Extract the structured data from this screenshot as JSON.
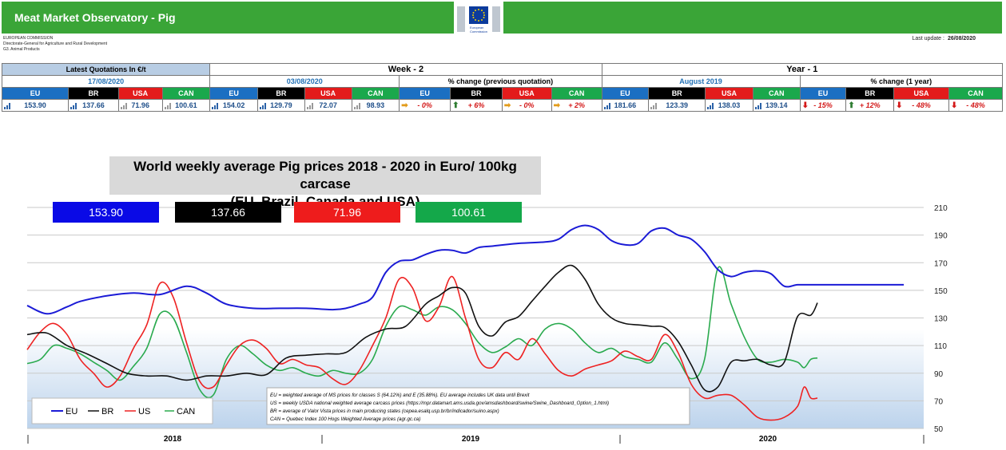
{
  "header": {
    "title": "Meat Market Observatory - Pig",
    "org_lines": [
      "EUROPEAN COMMISSION",
      "Directorate-General for Agriculture and Rural Development",
      "G3. Animal Products"
    ],
    "logo_text": [
      "European",
      "Commission"
    ],
    "last_update_label": "Last update :",
    "last_update_value": "26/08/2020"
  },
  "table": {
    "latest_label": "Latest Quotations In €/t",
    "week_label": "Week - 2",
    "year_label": "Year - 1",
    "latest_date": "17/08/2020",
    "week_date": "03/08/2020",
    "week_change_label": "% change (previous quotation)",
    "year_date": "August 2019",
    "year_change_label": "% change (1 year)",
    "countries": [
      "EU",
      "BR",
      "USA",
      "CAN"
    ],
    "latest_values": [
      "153.90",
      "137.66",
      "71.96",
      "100.61"
    ],
    "week_values": [
      "154.02",
      "129.79",
      "72.07",
      "98.93"
    ],
    "week_changes": [
      "- 0%",
      "+ 6%",
      "- 0%",
      "+ 2%"
    ],
    "week_change_dirs": [
      "flat",
      "up",
      "flat",
      "flat"
    ],
    "year_values": [
      "181.66",
      "123.39",
      "138.03",
      "139.14"
    ],
    "year_changes": [
      "- 15%",
      "+ 12%",
      "- 48%",
      "- 48%"
    ],
    "year_change_dirs": [
      "down",
      "up",
      "down",
      "down"
    ]
  },
  "chart_title_line1": "World weekly average Pig prices 2018 - 2020  in Euro/ 100kg carcase",
  "chart_title_line2": "(EU, Brazil, Canada and USA)",
  "value_boxes": [
    {
      "value": "153.90",
      "color": "#0a0ae6"
    },
    {
      "value": "137.66",
      "color": "#000000"
    },
    {
      "value": "71.96",
      "color": "#ee1c1c"
    },
    {
      "value": "100.61",
      "color": "#14a84a"
    }
  ],
  "notes": [
    "EU    = weighted average of MS prices for classes S (64.12%) and E (35.88%). EU average includes UK data  until Brexit",
    "US    = weekly USDA national weighted average carcass prices (https://mpr.datamart.ams.usda.gov/amsdashboard/swine/Swine_Dashboard_Option_1.html)",
    "BR    = average of Valor Vista prices in main producing states (cepea.esalq.usp.br/br/indicador/suino.aspx)",
    "CAN = Quebec Index 100 Hogs Weighted Average prices (agr.gc.ca)"
  ],
  "chart_data": {
    "type": "line",
    "title": "World weekly average Pig prices 2018 - 2020  in Euro/ 100kg carcase (EU, Brazil, Canada and USA)",
    "ylim": [
      50,
      210
    ],
    "yticks": [
      "50",
      "70",
      "90",
      "110",
      "130",
      "150",
      "170",
      "190",
      "210"
    ],
    "xlabels": [
      "2018",
      "2019",
      "2020"
    ],
    "xlim": [
      0,
      135
    ],
    "grid": true,
    "legend_position": "bottom-left",
    "series": [
      {
        "name": "EU",
        "color": "#1b1bd6",
        "x": [
          0,
          3,
          6,
          8,
          12,
          16,
          20,
          24,
          27,
          30,
          34,
          38,
          42,
          46,
          48,
          50,
          52,
          54,
          56,
          58,
          60,
          62,
          64,
          66,
          68,
          70,
          74,
          78,
          80,
          82,
          84,
          86,
          88,
          90,
          92,
          94,
          96,
          98,
          100,
          102,
          104,
          106,
          108,
          110,
          112,
          114,
          116,
          118,
          120,
          122,
          124,
          126,
          128,
          130,
          132
        ],
        "y": [
          139,
          133,
          138,
          142,
          146,
          148,
          147,
          153,
          148,
          140,
          137,
          137,
          137,
          136,
          137,
          140,
          145,
          163,
          171,
          172,
          176,
          179,
          179,
          177,
          181,
          182,
          184,
          185,
          187,
          194,
          197,
          194,
          186,
          183,
          184,
          193,
          195,
          190,
          187,
          178,
          165,
          160,
          163,
          164,
          162,
          153,
          154,
          154,
          154,
          154,
          154,
          154,
          154,
          154,
          154
        ],
        "n": 55
      },
      {
        "name": "BR",
        "color": "#111111",
        "x": [
          0,
          3,
          6,
          9,
          12,
          15,
          18,
          21,
          24,
          27,
          30,
          33,
          36,
          39,
          42,
          45,
          48,
          51,
          54,
          57,
          60,
          62,
          64,
          66,
          68,
          70,
          72,
          74,
          76,
          78,
          80,
          82,
          84,
          86,
          88,
          90,
          92,
          94,
          96,
          98,
          100,
          102,
          104,
          106,
          108,
          110,
          112,
          114,
          116,
          118,
          119
        ],
        "y": [
          118,
          119,
          110,
          104,
          97,
          90,
          88,
          88,
          85,
          88,
          88,
          90,
          89,
          101,
          103,
          104,
          105,
          116,
          122,
          124,
          140,
          146,
          152,
          148,
          124,
          117,
          127,
          131,
          142,
          153,
          163,
          168,
          158,
          140,
          130,
          126,
          125,
          124,
          123,
          113,
          96,
          78,
          80,
          98,
          99,
          100,
          96,
          98,
          131,
          132,
          141
        ],
        "n": 51
      },
      {
        "name": "US",
        "color": "#ee2222",
        "x": [
          0,
          2,
          4,
          6,
          8,
          10,
          12,
          14,
          16,
          18,
          20,
          22,
          24,
          26,
          28,
          30,
          32,
          34,
          36,
          38,
          40,
          42,
          44,
          46,
          48,
          50,
          52,
          54,
          56,
          58,
          60,
          62,
          64,
          66,
          68,
          70,
          72,
          74,
          76,
          78,
          80,
          82,
          84,
          86,
          88,
          90,
          92,
          94,
          96,
          98,
          100,
          102,
          104,
          106,
          108,
          110,
          112,
          114,
          116,
          117,
          118,
          119
        ],
        "y": [
          107,
          120,
          126,
          118,
          100,
          90,
          80,
          88,
          108,
          125,
          155,
          145,
          112,
          84,
          80,
          96,
          110,
          114,
          108,
          97,
          100,
          96,
          94,
          86,
          82,
          92,
          110,
          130,
          158,
          152,
          128,
          138,
          160,
          130,
          100,
          94,
          105,
          100,
          115,
          104,
          92,
          88,
          93,
          96,
          99,
          106,
          102,
          100,
          118,
          105,
          82,
          72,
          74,
          74,
          67,
          58,
          56,
          58,
          66,
          80,
          72,
          72
        ],
        "n": 62
      },
      {
        "name": "CAN",
        "color": "#2aaa4e",
        "x": [
          0,
          2,
          4,
          6,
          8,
          10,
          12,
          14,
          16,
          18,
          20,
          22,
          24,
          26,
          28,
          30,
          32,
          34,
          36,
          38,
          40,
          42,
          44,
          46,
          48,
          50,
          52,
          54,
          56,
          58,
          60,
          62,
          64,
          66,
          68,
          70,
          72,
          74,
          76,
          78,
          80,
          82,
          84,
          86,
          88,
          90,
          92,
          94,
          96,
          98,
          100,
          102,
          104,
          106,
          108,
          110,
          112,
          114,
          116,
          117,
          118,
          119
        ],
        "y": [
          97,
          100,
          110,
          108,
          104,
          98,
          92,
          85,
          95,
          108,
          133,
          130,
          105,
          78,
          74,
          100,
          110,
          104,
          96,
          92,
          94,
          90,
          88,
          92,
          90,
          90,
          100,
          124,
          138,
          136,
          132,
          138,
          136,
          126,
          112,
          105,
          109,
          115,
          110,
          122,
          126,
          122,
          112,
          105,
          108,
          102,
          100,
          98,
          112,
          100,
          86,
          100,
          166,
          140,
          116,
          100,
          98,
          100,
          98,
          94,
          100,
          101
        ],
        "n": 62
      }
    ]
  },
  "legend": [
    "EU",
    "BR",
    "US",
    "CAN"
  ]
}
